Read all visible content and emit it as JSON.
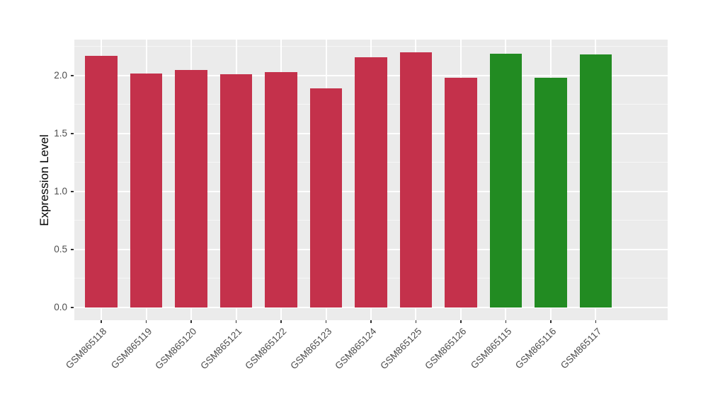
{
  "chart_data": {
    "type": "bar",
    "title": "",
    "xlabel": "",
    "ylabel": "Expression Level",
    "categories": [
      "GSM865118",
      "GSM865119",
      "GSM865120",
      "GSM865121",
      "GSM865122",
      "GSM865123",
      "GSM865124",
      "GSM865125",
      "GSM865126",
      "GSM865115",
      "GSM865116",
      "GSM865117"
    ],
    "values": [
      2.17,
      2.02,
      2.05,
      2.01,
      2.03,
      1.89,
      2.16,
      2.2,
      1.98,
      2.19,
      1.98,
      2.18
    ],
    "bar_colors": [
      "#C4314B",
      "#C4314B",
      "#C4314B",
      "#C4314B",
      "#C4314B",
      "#C4314B",
      "#C4314B",
      "#C4314B",
      "#C4314B",
      "#228B22",
      "#228B22",
      "#228B22"
    ],
    "group_colors": {
      "red_group": "#C4314B",
      "green_group": "#228B22"
    },
    "yticks": [
      0.0,
      0.5,
      1.0,
      1.5,
      2.0
    ],
    "ytick_labels": [
      "0.0",
      "0.5",
      "1.0",
      "1.5",
      "2.0"
    ],
    "ylim": [
      0,
      2.31
    ],
    "grid": "major-and-minor",
    "legend": "none",
    "panel_background": "#EBEBEB",
    "gridline_color": "#FFFFFF",
    "tick_color": "#333333",
    "tick_label_color": "#4D4D4D",
    "axis_title_color": "#000000"
  }
}
